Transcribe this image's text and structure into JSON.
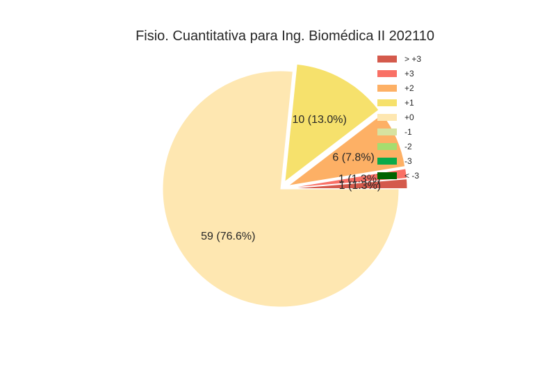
{
  "chart_data": {
    "type": "pie",
    "title": "Fisio. Cuantitativa para Ing. Biomédica II 202110",
    "slices": [
      {
        "category": "> +3",
        "count": 1,
        "label": "1 (1.3%)",
        "color": "#d45a4c",
        "explode": true
      },
      {
        "category": "+3",
        "count": 1,
        "label": "1 (1.3%)",
        "color": "#f97065",
        "explode": true
      },
      {
        "category": "+2",
        "count": 6,
        "label": "6 (7.8%)",
        "color": "#fdb065",
        "explode": true
      },
      {
        "category": "+1",
        "count": 10,
        "label": "10 (13.0%)",
        "color": "#f6e16c",
        "explode": true
      },
      {
        "category": "+0",
        "count": 59,
        "label": "59 (76.6%)",
        "color": "#fee7b1",
        "explode": false
      }
    ],
    "legend": {
      "placement": "top-right",
      "entries": [
        {
          "label": "> +3",
          "color": "#d45a4c"
        },
        {
          "label": "+3",
          "color": "#f97065"
        },
        {
          "label": "+2",
          "color": "#fdb065"
        },
        {
          "label": "+1",
          "color": "#f6e16c"
        },
        {
          "label": "+0",
          "color": "#fee7b1"
        },
        {
          "label": "-1",
          "color": "#d7e2a0"
        },
        {
          "label": "-2",
          "color": "#a5dd6f"
        },
        {
          "label": "-3",
          "color": "#0aaa4a"
        },
        {
          "label": "< -3",
          "color": "#006400"
        }
      ]
    }
  }
}
